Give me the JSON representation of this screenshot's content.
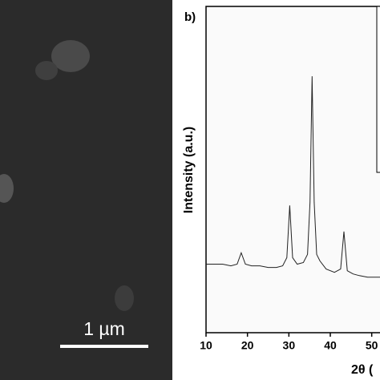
{
  "sem_panel": {
    "scale_bar_label": "1 µm"
  },
  "chart_data": {
    "type": "line",
    "panel_label": "b)",
    "y_label": "Intensity (a.u.)",
    "x_label": "2θ (",
    "x": [
      10,
      12,
      14,
      16,
      17.5,
      18.5,
      19.5,
      21,
      23,
      25,
      27,
      28.5,
      29.5,
      30.2,
      30.9,
      32,
      33.5,
      34.5,
      35.1,
      35.6,
      36.1,
      36.7,
      37.5,
      39,
      41,
      42.5,
      43.3,
      44.1,
      45.5,
      47,
      49,
      50.5,
      52
    ],
    "values": [
      21,
      21,
      21,
      20.5,
      21,
      24.5,
      21,
      20.5,
      20.5,
      20,
      20,
      20.5,
      23,
      39,
      23,
      21,
      21.5,
      24,
      40,
      78.6,
      40,
      24,
      22,
      19.5,
      18.5,
      19.5,
      31,
      19,
      18,
      17.5,
      17,
      17,
      17
    ],
    "color": "#222222",
    "xlim": [
      10,
      52
    ],
    "ylim": [
      0,
      100
    ],
    "xticks": [
      10,
      20,
      30,
      40,
      50
    ]
  }
}
